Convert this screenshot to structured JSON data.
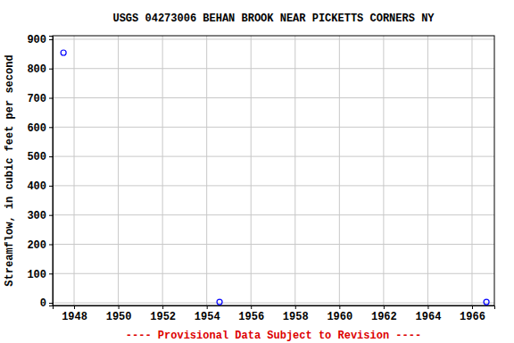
{
  "chart_data": {
    "type": "scatter",
    "title": "USGS 04273006 BEHAN BROOK NEAR PICKETTS CORNERS NY",
    "y_label": "Streamflow, in cubic feet per second",
    "caption": "---- Provisional Data Subject to Revision ----",
    "x": [
      1947.52,
      1954.58,
      1966.65
    ],
    "values": [
      854,
      3,
      3
    ],
    "color": "#0000ff",
    "marker": "circle",
    "xlim": [
      1947.03,
      1967.01
    ],
    "xticks": [
      1948,
      1950,
      1952,
      1954,
      1956,
      1958,
      1960,
      1962,
      1964,
      1966
    ],
    "ylim": [
      -9,
      912
    ],
    "yticks": [
      0,
      100,
      200,
      300,
      400,
      500,
      600,
      700,
      800,
      900
    ],
    "grid": true
  }
}
